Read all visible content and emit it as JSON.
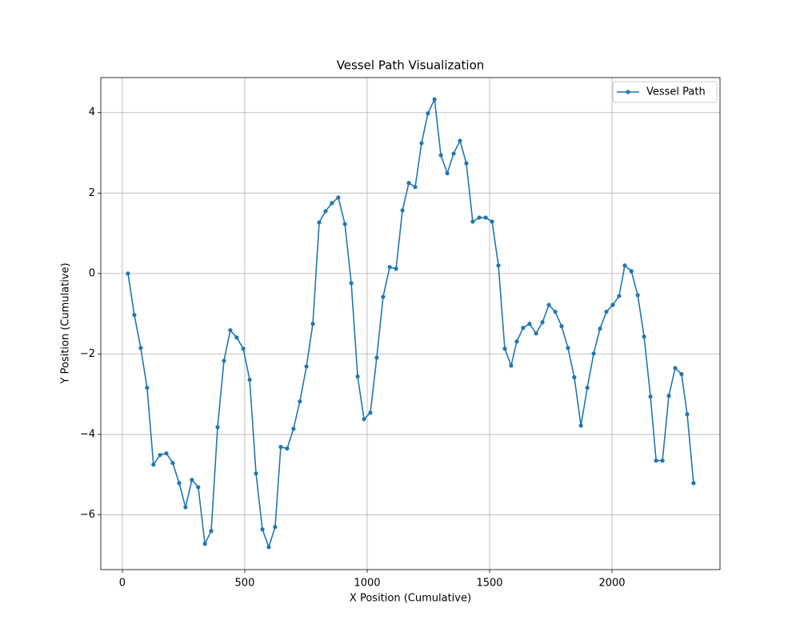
{
  "chart_data": {
    "type": "line",
    "title": "Vessel Path Visualization",
    "x_label": "X Position (Cumulative)",
    "y_label": "Y Position (Cumulative)",
    "x": [
      23,
      49,
      75,
      101,
      127,
      154,
      180,
      206,
      232,
      258,
      284,
      310,
      337,
      363,
      389,
      415,
      441,
      467,
      494,
      520,
      546,
      572,
      598,
      624,
      647,
      673,
      699,
      725,
      752,
      778,
      804,
      830,
      856,
      882,
      909,
      935,
      961,
      987,
      1013,
      1039,
      1065,
      1092,
      1118,
      1144,
      1170,
      1196,
      1222,
      1248,
      1275,
      1301,
      1327,
      1353,
      1379,
      1405,
      1431,
      1458,
      1484,
      1510,
      1536,
      1562,
      1588,
      1611,
      1637,
      1663,
      1690,
      1716,
      1742,
      1768,
      1794,
      1820,
      1846,
      1873,
      1899,
      1925,
      1951,
      1977,
      2003,
      2029,
      2052,
      2079,
      2105,
      2131,
      2157,
      2180,
      2206,
      2232,
      2258,
      2284,
      2307,
      2333
    ],
    "series": [
      {
        "name": "Vessel Path",
        "color": "#1f77b4",
        "values": [
          0,
          -1.03,
          -1.85,
          -2.84,
          -4.75,
          -4.51,
          -4.47,
          -4.71,
          -5.21,
          -5.81,
          -5.13,
          -5.31,
          -6.72,
          -6.4,
          -3.82,
          -2.17,
          -1.41,
          -1.59,
          -1.87,
          -2.64,
          -4.97,
          -6.36,
          -6.8,
          -6.3,
          -4.31,
          -4.35,
          -3.86,
          -3.18,
          -2.31,
          -1.25,
          1.27,
          1.55,
          1.75,
          1.89,
          1.23,
          -0.24,
          -2.56,
          -3.62,
          -3.46,
          -2.09,
          -0.58,
          0.16,
          0.12,
          1.57,
          2.25,
          2.15,
          3.24,
          3.98,
          4.33,
          2.94,
          2.49,
          2.98,
          3.3,
          2.74,
          1.29,
          1.39,
          1.39,
          1.29,
          0.2,
          -1.87,
          -2.29,
          -1.69,
          -1.35,
          -1.25,
          -1.49,
          -1.21,
          -0.78,
          -0.95,
          -1.31,
          -1.85,
          -2.58,
          -3.78,
          -2.84,
          -1.99,
          -1.37,
          -0.95,
          -0.78,
          -0.56,
          0.2,
          0.06,
          -0.54,
          -1.57,
          -3.06,
          -4.65,
          -4.65,
          -3.04,
          -2.35,
          -2.5,
          -3.5,
          -5.21
        ]
      }
    ],
    "xlim": [
      -88,
      2441
    ],
    "ylim": [
      -7.36,
      4.87
    ],
    "xticks": [
      0,
      500,
      1000,
      1500,
      2000
    ],
    "yticks": [
      {
        "value": -6,
        "label": "−6"
      },
      {
        "value": -4,
        "label": "−4"
      },
      {
        "value": -2,
        "label": "−2"
      },
      0,
      2,
      4
    ],
    "grid": true,
    "legend": "upper right"
  }
}
